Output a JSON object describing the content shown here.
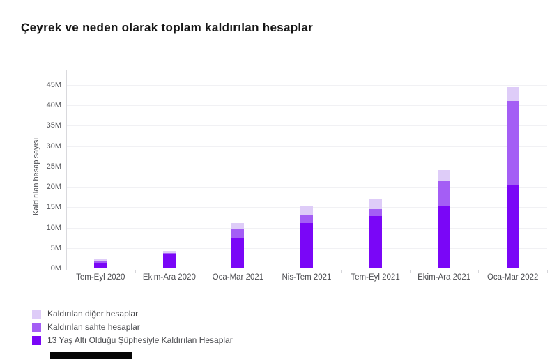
{
  "page": {
    "title": "Çeyrek ve neden olarak toplam kaldırılan hesaplar"
  },
  "colors": {
    "under13": "#7a06f7",
    "fake": "#a45ef5",
    "other": "#deccf8",
    "grid": "#f1f1f4",
    "axis": "#d9d9dd",
    "tick_text": "#55565a",
    "title_text": "#151515",
    "bottom_bar": "#060606"
  },
  "chart_data": {
    "type": "bar",
    "stacked": true,
    "title": "Çeyrek ve neden olarak toplam kaldırılan hesaplar",
    "xlabel": "",
    "ylabel": "Kaldırılan hesap sayısı",
    "unit": "millions of accounts",
    "categories": [
      "Tem-Eyl 2020",
      "Ekim-Ara 2020",
      "Oca-Mar 2021",
      "Nis-Tem 2021",
      "Tem-Eyl 2021",
      "Ekim-Ara 2021",
      "Oca-Mar 2022"
    ],
    "series": [
      {
        "name": "13 Yaş Altı Olduğu Şüphesiyle Kaldırılan Hesaplar",
        "color_key": "under13",
        "values": [
          1.4,
          3.5,
          7.3,
          11.2,
          12.9,
          15.4,
          20.4
        ]
      },
      {
        "name": "Kaldırılan sahte hesaplar",
        "color_key": "fake",
        "values": [
          0.3,
          0.2,
          2.2,
          1.8,
          1.6,
          6.0,
          20.7
        ]
      },
      {
        "name": "Kaldırılan diğer hesaplar",
        "color_key": "other",
        "values": [
          0.6,
          0.6,
          1.7,
          2.3,
          2.6,
          2.8,
          3.4
        ]
      }
    ],
    "stack_totals": [
      2.3,
      4.3,
      11.2,
      15.3,
      17.1,
      24.2,
      44.5
    ],
    "ylim": [
      0,
      45
    ],
    "ytick_step": 5,
    "ytick_suffix": "M",
    "grid": true,
    "legend_position": "bottom-left"
  },
  "legend": {
    "items": [
      {
        "label": "Kaldırılan diğer hesaplar",
        "color_key": "other"
      },
      {
        "label": "Kaldırılan sahte hesaplar",
        "color_key": "fake"
      },
      {
        "label": "13 Yaş Altı Olduğu Şüphesiyle Kaldırılan Hesaplar",
        "color_key": "under13"
      }
    ]
  }
}
